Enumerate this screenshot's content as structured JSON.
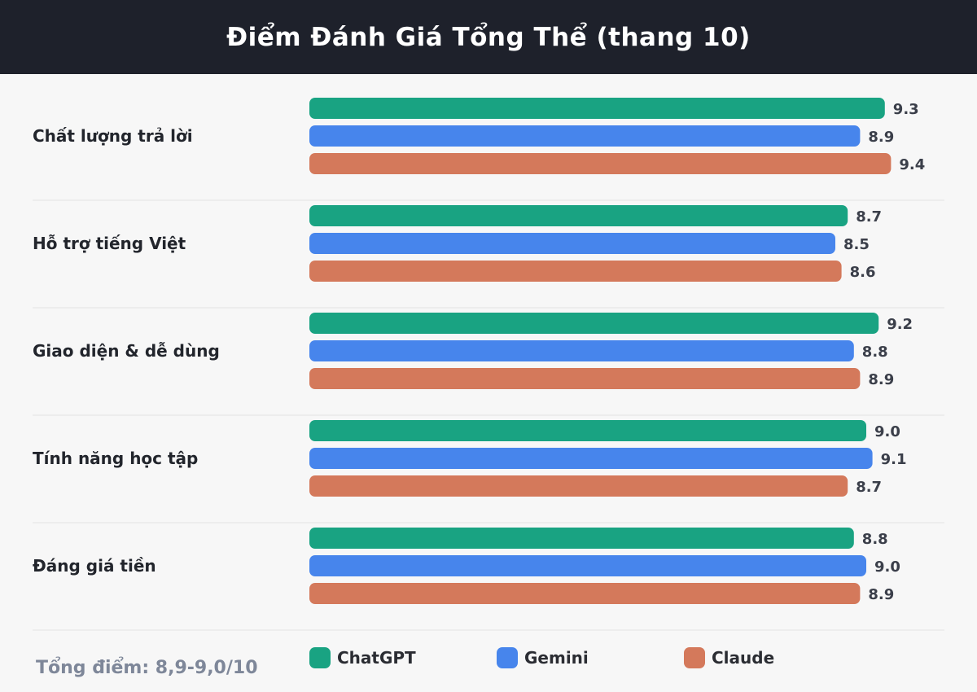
{
  "header": {
    "title": "Điểm Đánh Giá Tổng Thể (thang 10)"
  },
  "footer": {
    "note": "Tổng điểm: 8,9-9,0/10"
  },
  "colors": {
    "ChatGPT": "#19a382",
    "Gemini": "#4785ec",
    "Claude": "#d4795b"
  },
  "chart_data": {
    "type": "bar",
    "orientation": "horizontal",
    "title": "Điểm Đánh Giá Tổng Thể (thang 10)",
    "categories": [
      "Chất lượng trả lời",
      "Hỗ trợ tiếng Việt",
      "Giao diện & dễ dùng",
      "Tính năng học tập",
      "Đáng giá tiền"
    ],
    "series": [
      {
        "name": "ChatGPT",
        "values": [
          9.3,
          8.7,
          9.2,
          9.0,
          8.8
        ],
        "labels": [
          "9.3",
          "8.7",
          "9.2",
          "9.0",
          "8.8"
        ]
      },
      {
        "name": "Gemini",
        "values": [
          8.9,
          8.5,
          8.8,
          9.1,
          9.0
        ],
        "labels": [
          "8.9",
          "8.5",
          "8.8",
          "9.1",
          "9.0"
        ]
      },
      {
        "name": "Claude",
        "values": [
          9.4,
          8.6,
          8.9,
          8.7,
          8.9
        ],
        "labels": [
          "9.4",
          "8.6",
          "8.9",
          "8.7",
          "8.9"
        ]
      }
    ],
    "xlim": [
      0,
      10
    ],
    "grid": false,
    "legend_position": "bottom"
  }
}
